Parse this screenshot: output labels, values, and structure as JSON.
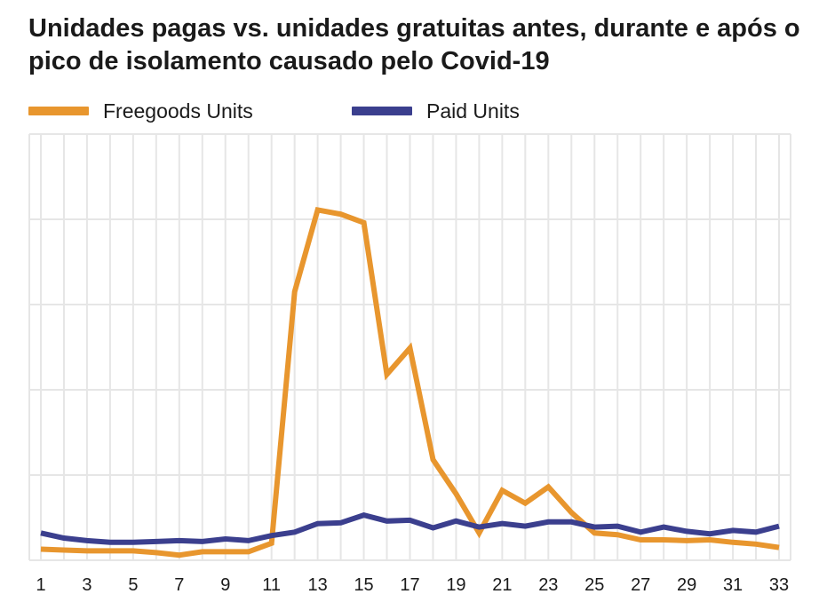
{
  "title": "Unidades pagas vs. unidades gratuitas antes, durante e após o pico de isolamento causado pelo Covid-19",
  "colors": {
    "freegoods": "#E8962E",
    "paid": "#3B3F8E",
    "grid": "#e6e6e6"
  },
  "chart_data": {
    "type": "line",
    "title": "Unidades pagas vs. unidades gratuitas antes, durante e após o pico de isolamento causado pelo Covid-19",
    "xlabel": "",
    "ylabel": "",
    "x": [
      1,
      2,
      3,
      4,
      5,
      6,
      7,
      8,
      9,
      10,
      11,
      12,
      13,
      14,
      15,
      16,
      17,
      18,
      19,
      20,
      21,
      22,
      23,
      24,
      25,
      26,
      27,
      28,
      29,
      30,
      31,
      32,
      33
    ],
    "x_tick_labels": [
      "1",
      "3",
      "5",
      "7",
      "9",
      "11",
      "13",
      "15",
      "17",
      "19",
      "21",
      "23",
      "25",
      "27",
      "29",
      "31",
      "33"
    ],
    "ylim": [
      0,
      500
    ],
    "y_ticks_shown": false,
    "grid": true,
    "legend_position": "top",
    "series": [
      {
        "name": "Freegoods Units",
        "color": "#E8962E",
        "values": [
          13,
          12,
          11,
          11,
          11,
          9,
          6,
          10,
          10,
          10,
          20,
          315,
          411,
          406,
          396,
          218,
          249,
          118,
          78,
          32,
          82,
          67,
          86,
          56,
          32,
          30,
          24,
          24,
          23,
          24,
          21,
          19,
          15
        ]
      },
      {
        "name": "Paid Units",
        "color": "#3B3F8E",
        "values": [
          32,
          26,
          23,
          21,
          21,
          22,
          23,
          22,
          25,
          23,
          29,
          33,
          43,
          44,
          53,
          46,
          47,
          38,
          46,
          39,
          43,
          40,
          45,
          45,
          39,
          40,
          33,
          39,
          34,
          31,
          35,
          33,
          40
        ]
      }
    ]
  }
}
